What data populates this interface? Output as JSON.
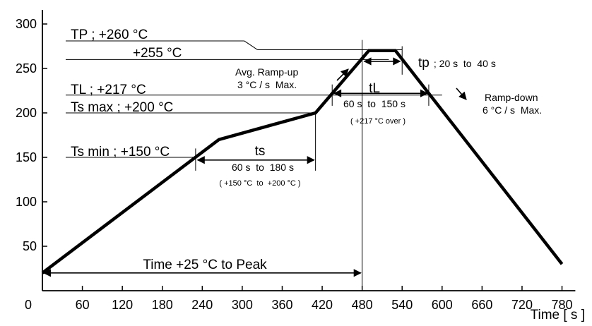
{
  "chart_data": {
    "type": "line",
    "xlabel": "Time [ s ]",
    "ylabel": "",
    "xlim": [
      0,
      800
    ],
    "ylim": [
      0,
      320
    ],
    "x_ticks": [
      0,
      60,
      120,
      180,
      240,
      300,
      360,
      420,
      480,
      540,
      600,
      660,
      720,
      780
    ],
    "y_ticks": [
      50,
      100,
      150,
      200,
      250,
      300
    ],
    "grid": false,
    "series": [
      {
        "x": [
          0,
          265,
          410,
          490,
          500,
          530,
          780
        ],
        "y": [
          20,
          170,
          200,
          270,
          270,
          270,
          30
        ]
      }
    ],
    "annotations": {
      "tp_level": "TP ; +260 °C",
      "peak_level": "+255 °C",
      "tl_level": "TL ; +217 °C",
      "ts_max_level": "Ts max ; +200 °C",
      "ts_min_level": "Ts min ; +150 °C",
      "ramp_up_1": "Avg. Ramp-up",
      "ramp_up_2": "3 °C / s  Max.",
      "ramp_down_1": "Ramp-down",
      "ramp_down_2": "6 °C / s  Max.",
      "tp_big": "tp",
      "tp_range": " ; 20 s  to  40 s",
      "tl_label": "tL",
      "tl_range": "60 s  to  150 s",
      "tl_note": "( +217 °C over )",
      "ts_label": "ts",
      "ts_range": "60 s  to  180 s",
      "ts_note": "( +150 °C  to  +200 °C )",
      "time_to_peak": "Time +25 °C to Peak"
    }
  }
}
